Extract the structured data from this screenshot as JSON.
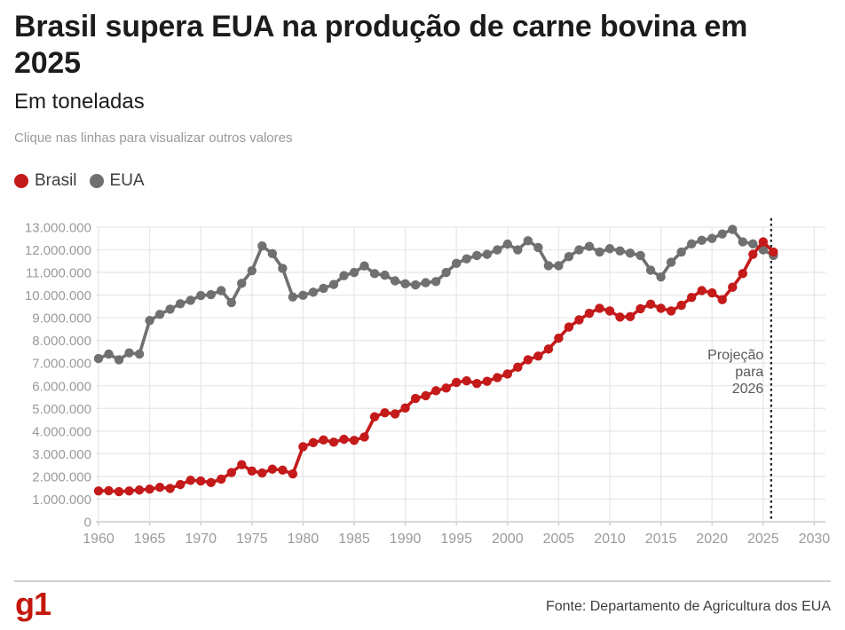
{
  "header": {
    "title_line1": "Brasil supera EUA na produção de carne bovina em",
    "title_line2": "2025",
    "subtitle": "Em toneladas",
    "hint": "Clique nas linhas para visualizar outros valores"
  },
  "legend": {
    "items": [
      {
        "label": "Brasil",
        "color": "#c41a1a"
      },
      {
        "label": "EUA",
        "color": "#707070"
      }
    ]
  },
  "annotation": {
    "lines": [
      "Projeção",
      "para",
      "2026"
    ],
    "marker_year": 2026
  },
  "footer": {
    "logo": "g1",
    "source": "Fonte: Departamento de Agricultura dos EUA"
  },
  "colors": {
    "brasil": "#c41a1a",
    "eua": "#707070",
    "gridline": "#e8e8e8",
    "axis_line": "#cccccc",
    "tick_label": "#9b9b9b",
    "annotation": "#595959",
    "dotted_line": "#1a1a1a"
  },
  "chart_data": {
    "type": "line",
    "title": "Brasil supera EUA na produção de carne bovina em 2025",
    "subtitle": "Em toneladas",
    "xlabel": "",
    "ylabel": "toneladas",
    "ylim": [
      0,
      13000000
    ],
    "ytick_step": 1000000,
    "xlim": [
      1960,
      2030
    ],
    "xticks": [
      1960,
      1965,
      1970,
      1975,
      1980,
      1985,
      1990,
      1995,
      2000,
      2005,
      2010,
      2015,
      2020,
      2025,
      2030
    ],
    "grid": true,
    "legend_position": "top-left",
    "projection_line_x": 2026,
    "x": [
      1960,
      1961,
      1962,
      1963,
      1964,
      1965,
      1966,
      1967,
      1968,
      1969,
      1970,
      1971,
      1972,
      1973,
      1974,
      1975,
      1976,
      1977,
      1978,
      1979,
      1980,
      1981,
      1982,
      1983,
      1984,
      1985,
      1986,
      1987,
      1988,
      1989,
      1990,
      1991,
      1992,
      1993,
      1994,
      1995,
      1996,
      1997,
      1998,
      1999,
      2000,
      2001,
      2002,
      2003,
      2004,
      2005,
      2006,
      2007,
      2008,
      2009,
      2010,
      2011,
      2012,
      2013,
      2014,
      2015,
      2016,
      2017,
      2018,
      2019,
      2020,
      2021,
      2022,
      2023,
      2024,
      2025,
      2026
    ],
    "series": [
      {
        "name": "Brasil",
        "color": "#c41a1a",
        "values": [
          1360000,
          1370000,
          1330000,
          1360000,
          1400000,
          1440000,
          1520000,
          1470000,
          1640000,
          1830000,
          1800000,
          1730000,
          1880000,
          2170000,
          2520000,
          2240000,
          2150000,
          2320000,
          2280000,
          2110000,
          3310000,
          3490000,
          3610000,
          3510000,
          3640000,
          3590000,
          3740000,
          4630000,
          4810000,
          4760000,
          5020000,
          5440000,
          5560000,
          5780000,
          5900000,
          6150000,
          6220000,
          6100000,
          6200000,
          6360000,
          6520000,
          6820000,
          7150000,
          7310000,
          7620000,
          8100000,
          8590000,
          8910000,
          9200000,
          9420000,
          9300000,
          9030000,
          9050000,
          9400000,
          9600000,
          9420000,
          9300000,
          9550000,
          9900000,
          10200000,
          10100000,
          9800000,
          10350000,
          10950000,
          11800000,
          12350000,
          11900000
        ]
      },
      {
        "name": "EUA",
        "color": "#707070",
        "values": [
          7200000,
          7400000,
          7150000,
          7450000,
          7400000,
          8880000,
          9150000,
          9380000,
          9620000,
          9770000,
          9980000,
          10020000,
          10200000,
          9670000,
          10520000,
          11080000,
          12170000,
          11830000,
          11180000,
          9920000,
          9990000,
          10130000,
          10300000,
          10470000,
          10860000,
          11000000,
          11290000,
          10950000,
          10880000,
          10630000,
          10500000,
          10450000,
          10550000,
          10600000,
          11000000,
          11400000,
          11600000,
          11750000,
          11800000,
          12000000,
          12250000,
          12000000,
          12400000,
          12100000,
          11300000,
          11300000,
          11700000,
          12000000,
          12150000,
          11900000,
          12050000,
          11950000,
          11850000,
          11750000,
          11100000,
          10800000,
          11450000,
          11900000,
          12260000,
          12420000,
          12500000,
          12700000,
          12900000,
          12350000,
          12260000,
          12000000,
          11750000
        ]
      }
    ]
  }
}
